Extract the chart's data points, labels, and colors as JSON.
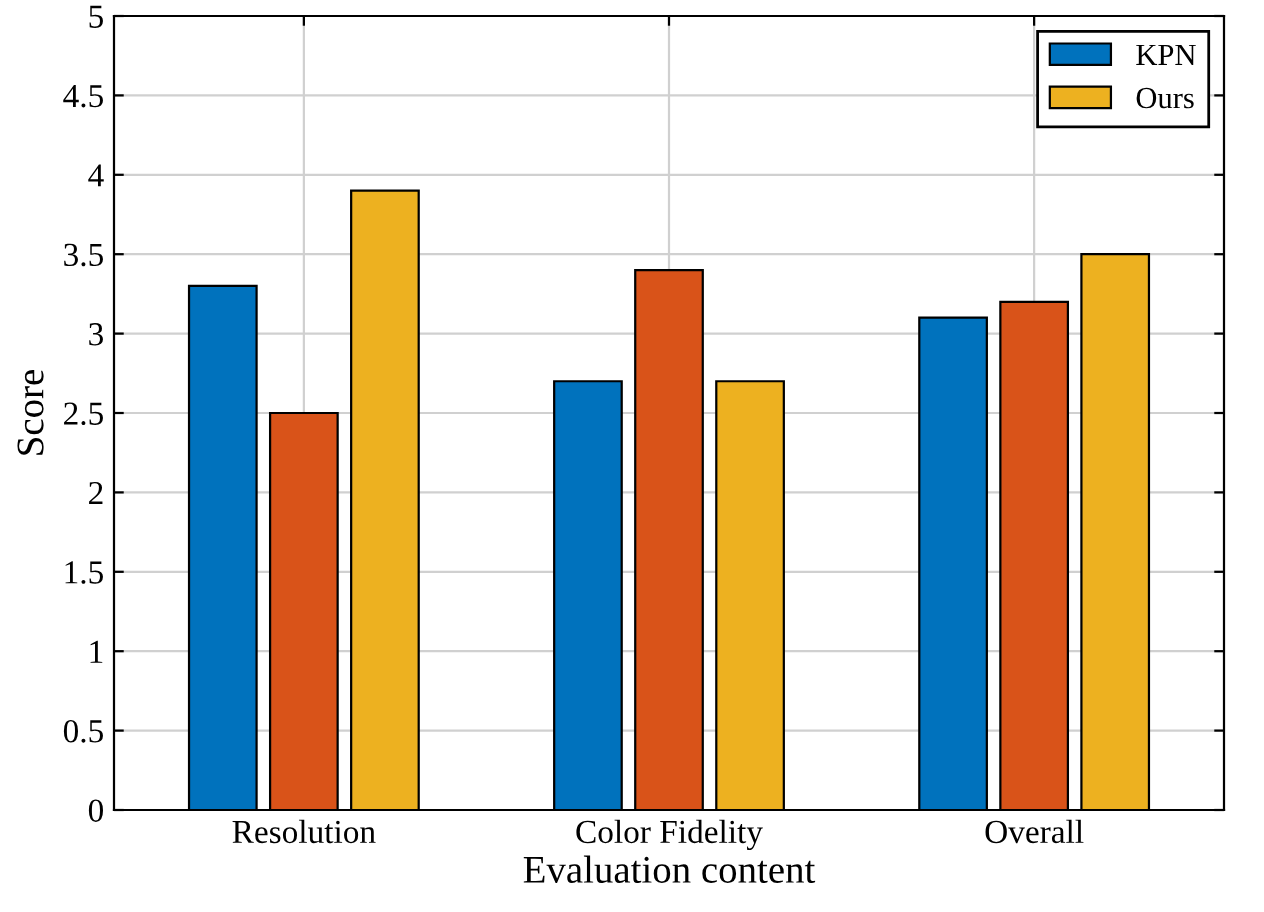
{
  "chart_data": {
    "type": "bar",
    "xlabel": "Evaluation content",
    "ylabel": "Score",
    "categories": [
      "Resolution",
      "Color Fidelity",
      "Overall"
    ],
    "series": [
      {
        "name": "KPN",
        "color": "#0072bd",
        "values": [
          3.3,
          2.7,
          3.1
        ]
      },
      {
        "color": "#d95319",
        "values": [
          2.5,
          3.4,
          3.2
        ]
      },
      {
        "name": "Ours",
        "color": "#edb120",
        "values": [
          3.9,
          2.7,
          3.5
        ]
      }
    ],
    "ylim": [
      0,
      5
    ],
    "yticks": [
      0,
      0.5,
      1,
      1.5,
      2,
      2.5,
      3,
      3.5,
      4,
      4.5,
      5
    ],
    "grid": true,
    "legend": "top right"
  }
}
